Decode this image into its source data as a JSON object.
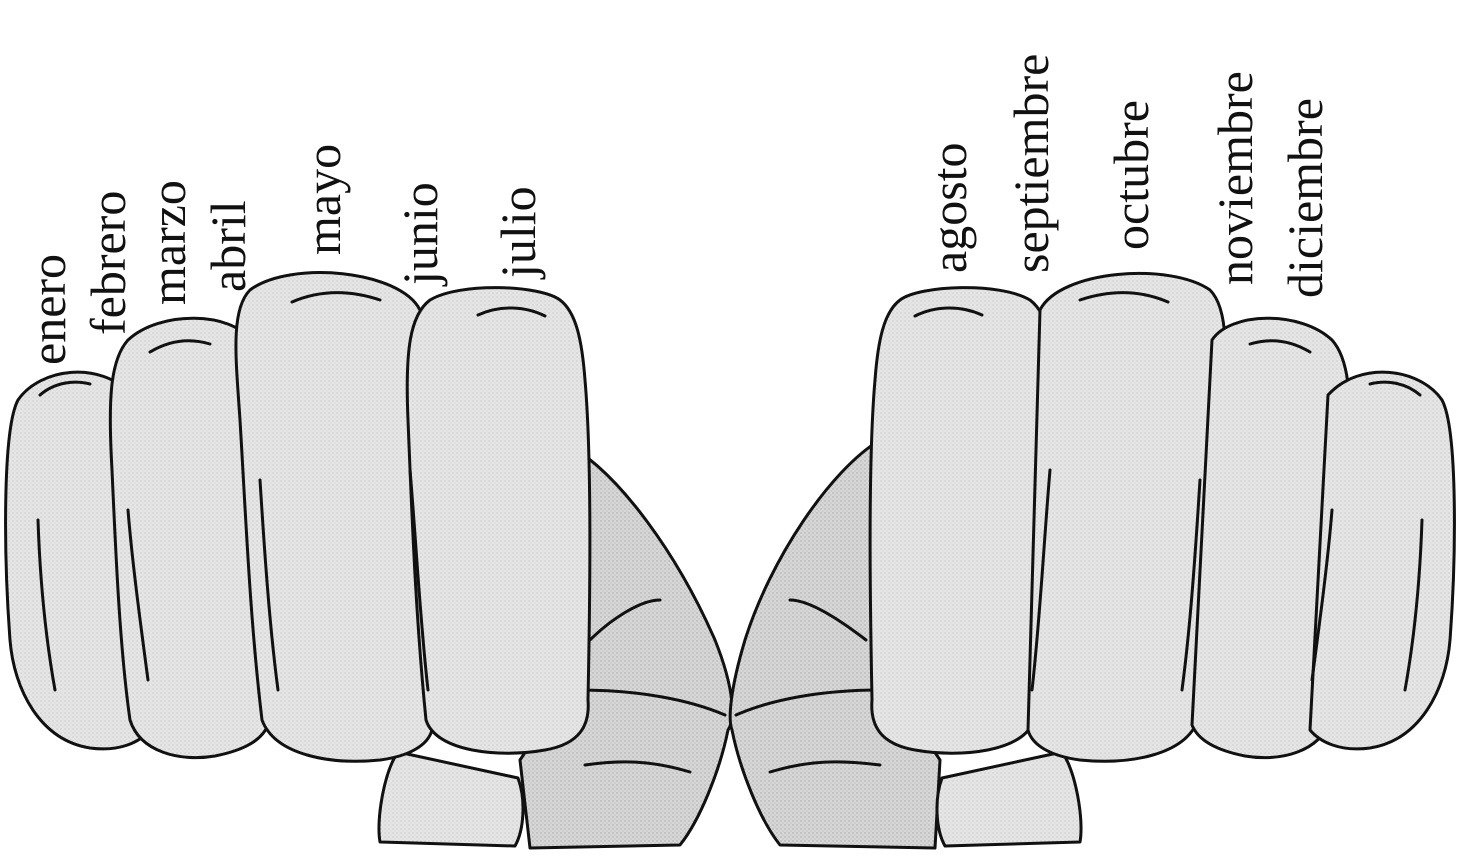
{
  "months": [
    {
      "label": "enero"
    },
    {
      "label": "febrero"
    },
    {
      "label": "marzo"
    },
    {
      "label": "abril"
    },
    {
      "label": "mayo"
    },
    {
      "label": "junio"
    },
    {
      "label": "julio"
    },
    {
      "label": "agosto"
    },
    {
      "label": "septiembre"
    },
    {
      "label": "octubre"
    },
    {
      "label": "noviembre"
    },
    {
      "label": "diciembre"
    }
  ],
  "colors": {
    "hand_fill": "#e4e4e4",
    "wrist_fill": "#d6d6d6",
    "outline": "#111111",
    "text": "#111111"
  }
}
